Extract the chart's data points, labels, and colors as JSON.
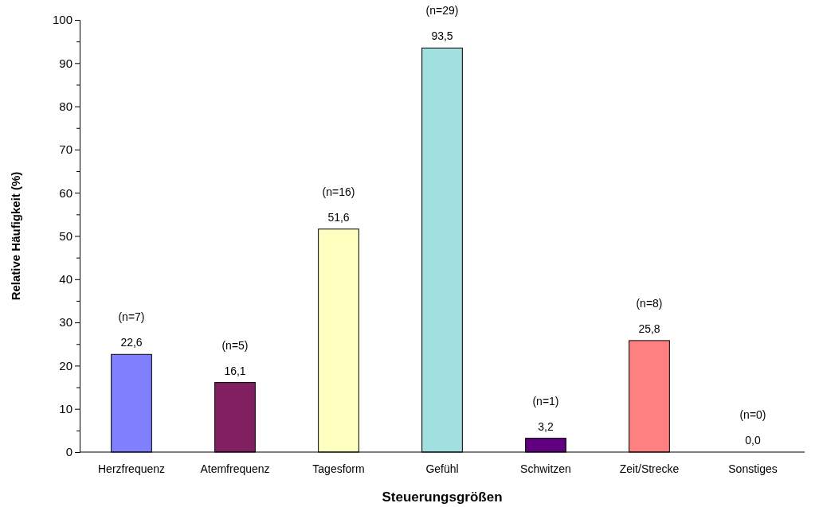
{
  "chart_data": {
    "type": "bar",
    "xlabel": "Steuerungsgrößen",
    "ylabel": "Relative Häufigkeit (%)",
    "categories": [
      "Herzfrequenz",
      "Atemfrequenz",
      "Tagesform",
      "Gefühl",
      "Schwitzen",
      "Zeit/Strecke",
      "Sonstiges"
    ],
    "values": [
      22.6,
      16.1,
      51.6,
      93.5,
      3.2,
      25.8,
      0.0
    ],
    "colors": [
      "#8080ff",
      "#802060",
      "#ffffc0",
      "#a0e0e0",
      "#600080",
      "#ff8080",
      "#ffffff"
    ],
    "value_labels": [
      "22,6",
      "16,1",
      "51,6",
      "93,5",
      "3,2",
      "25,8",
      "0,0"
    ],
    "annotations": [
      {
        "text": "(n=7)",
        "x": "Herzfrequenz",
        "y": 22.6
      },
      {
        "text": "(n=5)",
        "x": "Atemfrequenz",
        "y": 16.1
      },
      {
        "text": "(n=16)",
        "x": "Tagesform",
        "y": 51.6
      },
      {
        "text": "(n=29)",
        "x": "Gefühl",
        "y": 93.5
      },
      {
        "text": "(n=1)",
        "x": "Schwitzen",
        "y": 3.2
      },
      {
        "text": "(n=8)",
        "x": "Zeit/Strecke",
        "y": 25.8
      },
      {
        "text": "(n=0)",
        "x": "Sonstiges",
        "y": 0.0
      }
    ],
    "ylim": [
      0,
      100
    ],
    "yticks": [
      0,
      {
        "value": 5,
        "label": null
      },
      10,
      {
        "value": 15,
        "label": null
      },
      20,
      {
        "value": 25,
        "label": null
      },
      30,
      {
        "value": 35,
        "label": null
      },
      40,
      {
        "value": 45,
        "label": null
      },
      50,
      {
        "value": 55,
        "label": null
      },
      60,
      {
        "value": 65,
        "label": null
      },
      70,
      {
        "value": 75,
        "label": null
      },
      80,
      {
        "value": 85,
        "label": null
      },
      90,
      {
        "value": 95,
        "label": null
      },
      100
    ],
    "grid": false
  }
}
